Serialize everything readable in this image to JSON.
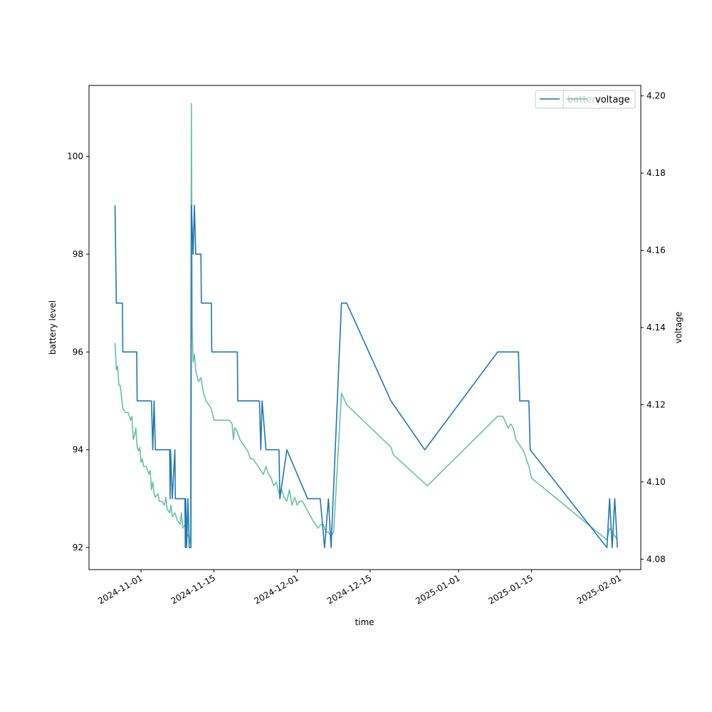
{
  "chart_data": {
    "type": "line",
    "xlabel": "time",
    "ylabel_left": "battery level",
    "ylabel_right": "voltage",
    "x_ticks": [
      "2024-11-01",
      "2024-11-15",
      "2024-12-01",
      "2024-12-15",
      "2025-01-01",
      "2025-01-15",
      "2025-02-01"
    ],
    "xlim": [
      "2024-10-22",
      "2025-02-05"
    ],
    "y_left_ticks": [
      92,
      94,
      96,
      98,
      100
    ],
    "y_left_lim": [
      91.55,
      101.45
    ],
    "y_right_ticks": [
      4.08,
      4.1,
      4.12,
      4.14,
      4.16,
      4.18,
      4.2
    ],
    "y_right_lim": [
      4.0773,
      4.2027
    ],
    "grid": false,
    "legends": [
      {
        "placement": "top-right",
        "entries": [
          "battery"
        ],
        "color": "#1f77b4"
      },
      {
        "placement": "top-right",
        "entries": [
          "voltage"
        ],
        "color": "#66c2a5"
      }
    ],
    "series": [
      {
        "name": "battery",
        "axis": "left",
        "color": "#1f77b4",
        "points": [
          [
            "2024-10-27T00:00",
            99
          ],
          [
            "2024-10-27T06:00",
            97
          ],
          [
            "2024-10-28T10:00",
            97
          ],
          [
            "2024-10-28T12:00",
            96
          ],
          [
            "2024-10-31T04:00",
            96
          ],
          [
            "2024-10-31T06:00",
            95
          ],
          [
            "2024-11-03T00:00",
            95
          ],
          [
            "2024-11-03T06:00",
            94
          ],
          [
            "2024-11-03T12:00",
            95
          ],
          [
            "2024-11-03T18:00",
            94
          ],
          [
            "2024-11-06T12:00",
            94
          ],
          [
            "2024-11-06T14:00",
            93
          ],
          [
            "2024-11-06T16:00",
            94
          ],
          [
            "2024-11-07T00:00",
            93
          ],
          [
            "2024-11-07T12:00",
            94
          ],
          [
            "2024-11-07T14:00",
            93
          ],
          [
            "2024-11-09T10:00",
            93
          ],
          [
            "2024-11-09T12:00",
            92
          ],
          [
            "2024-11-09T14:00",
            93
          ],
          [
            "2024-11-09T18:00",
            92
          ],
          [
            "2024-11-10T00:00",
            93
          ],
          [
            "2024-11-10T06:00",
            92
          ],
          [
            "2024-11-10T14:00",
            92
          ],
          [
            "2024-11-10T16:00",
            99
          ],
          [
            "2024-11-11T00:00",
            98
          ],
          [
            "2024-11-11T06:00",
            99
          ],
          [
            "2024-11-11T12:00",
            98
          ],
          [
            "2024-11-12T12:00",
            98
          ],
          [
            "2024-11-12T14:00",
            97
          ],
          [
            "2024-11-14T12:00",
            97
          ],
          [
            "2024-11-14T14:00",
            96
          ],
          [
            "2024-11-19T12:00",
            96
          ],
          [
            "2024-11-19T14:00",
            95
          ],
          [
            "2024-11-23T18:00",
            95
          ],
          [
            "2024-11-24T00:00",
            94
          ],
          [
            "2024-11-24T06:00",
            95
          ],
          [
            "2024-11-25T00:00",
            94
          ],
          [
            "2024-11-27T12:00",
            94
          ],
          [
            "2024-11-27T16:00",
            93
          ],
          [
            "2024-11-29T00:00",
            94
          ],
          [
            "2024-12-03T00:00",
            93
          ],
          [
            "2024-12-05T10:00",
            93
          ],
          [
            "2024-12-06T06:00",
            92
          ],
          [
            "2024-12-07T00:00",
            93
          ],
          [
            "2024-12-07T12:00",
            92
          ],
          [
            "2024-12-09T12:00",
            97
          ],
          [
            "2024-12-10T12:00",
            97
          ],
          [
            "2024-12-19T00:00",
            95
          ],
          [
            "2024-12-25T12:00",
            94
          ],
          [
            "2025-01-08T12:00",
            96
          ],
          [
            "2025-01-12T12:00",
            96
          ],
          [
            "2025-01-12T18:00",
            95
          ],
          [
            "2025-01-14T12:00",
            95
          ],
          [
            "2025-01-14T18:00",
            94
          ],
          [
            "2025-01-29T12:00",
            92
          ],
          [
            "2025-01-30T00:00",
            93
          ],
          [
            "2025-01-30T12:00",
            92
          ],
          [
            "2025-01-31T00:00",
            93
          ],
          [
            "2025-01-31T12:00",
            92
          ]
        ]
      },
      {
        "name": "voltage",
        "axis": "right",
        "color": "#66c2a5",
        "points": [
          [
            "2024-10-27T00:00",
            4.136
          ],
          [
            "2024-10-27T06:00",
            4.129
          ],
          [
            "2024-10-27T12:00",
            4.13
          ],
          [
            "2024-10-27T18:00",
            4.125
          ],
          [
            "2024-10-28T00:00",
            4.125
          ],
          [
            "2024-10-28T12:00",
            4.119
          ],
          [
            "2024-10-29T00:00",
            4.118
          ],
          [
            "2024-10-29T12:00",
            4.118
          ],
          [
            "2024-10-29T18:00",
            4.117
          ],
          [
            "2024-10-30T00:00",
            4.116
          ],
          [
            "2024-10-30T06:00",
            4.117
          ],
          [
            "2024-10-30T12:00",
            4.111
          ],
          [
            "2024-10-30T18:00",
            4.112
          ],
          [
            "2024-10-31T00:00",
            4.114
          ],
          [
            "2024-10-31T06:00",
            4.109
          ],
          [
            "2024-10-31T12:00",
            4.108
          ],
          [
            "2024-10-31T18:00",
            4.109
          ],
          [
            "2024-11-01T00:00",
            4.105
          ],
          [
            "2024-11-01T06:00",
            4.106
          ],
          [
            "2024-11-01T12:00",
            4.104
          ],
          [
            "2024-11-02T00:00",
            4.104
          ],
          [
            "2024-11-02T12:00",
            4.102
          ],
          [
            "2024-11-02T18:00",
            4.103
          ],
          [
            "2024-11-03T00:00",
            4.098
          ],
          [
            "2024-11-03T06:00",
            4.1
          ],
          [
            "2024-11-03T12:00",
            4.097
          ],
          [
            "2024-11-03T18:00",
            4.096
          ],
          [
            "2024-11-04T06:00",
            4.097
          ],
          [
            "2024-11-04T12:00",
            4.095
          ],
          [
            "2024-11-05T00:00",
            4.095
          ],
          [
            "2024-11-05T12:00",
            4.094
          ],
          [
            "2024-11-05T18:00",
            4.096
          ],
          [
            "2024-11-06T00:00",
            4.093
          ],
          [
            "2024-11-06T12:00",
            4.092
          ],
          [
            "2024-11-06T18:00",
            4.094
          ],
          [
            "2024-11-07T00:00",
            4.091
          ],
          [
            "2024-11-07T12:00",
            4.092
          ],
          [
            "2024-11-08T00:00",
            4.09
          ],
          [
            "2024-11-08T12:00",
            4.089
          ],
          [
            "2024-11-08T18:00",
            4.092
          ],
          [
            "2024-11-09T00:00",
            4.088
          ],
          [
            "2024-11-09T12:00",
            4.089
          ],
          [
            "2024-11-09T18:00",
            4.087
          ],
          [
            "2024-11-10T00:00",
            4.086
          ],
          [
            "2024-11-10T06:00",
            4.086
          ],
          [
            "2024-11-10T12:00",
            4.084
          ],
          [
            "2024-11-10T16:00",
            4.198
          ],
          [
            "2024-11-10T20:00",
            4.14
          ],
          [
            "2024-11-11T00:00",
            4.131
          ],
          [
            "2024-11-11T06:00",
            4.133
          ],
          [
            "2024-11-11T12:00",
            4.129
          ],
          [
            "2024-11-12T00:00",
            4.126
          ],
          [
            "2024-11-12T12:00",
            4.127
          ],
          [
            "2024-11-13T00:00",
            4.123
          ],
          [
            "2024-11-13T12:00",
            4.121
          ],
          [
            "2024-11-14T00:00",
            4.12
          ],
          [
            "2024-11-14T12:00",
            4.119
          ],
          [
            "2024-11-15T00:00",
            4.116
          ],
          [
            "2024-11-15T12:00",
            4.116
          ],
          [
            "2024-11-16T00:00",
            4.116
          ],
          [
            "2024-11-17T00:00",
            4.116
          ],
          [
            "2024-11-18T00:00",
            4.116
          ],
          [
            "2024-11-18T12:00",
            4.115
          ],
          [
            "2024-11-18T18:00",
            4.111
          ],
          [
            "2024-11-19T00:00",
            4.114
          ],
          [
            "2024-11-19T12:00",
            4.113
          ],
          [
            "2024-11-20T00:00",
            4.111
          ],
          [
            "2024-11-20T12:00",
            4.11
          ],
          [
            "2024-11-21T00:00",
            4.109
          ],
          [
            "2024-11-21T12:00",
            4.108
          ],
          [
            "2024-11-22T00:00",
            4.106
          ],
          [
            "2024-11-22T12:00",
            4.106
          ],
          [
            "2024-11-23T00:00",
            4.105
          ],
          [
            "2024-11-23T12:00",
            4.104
          ],
          [
            "2024-11-24T00:00",
            4.103
          ],
          [
            "2024-11-24T12:00",
            4.102
          ],
          [
            "2024-11-25T00:00",
            4.104
          ],
          [
            "2024-11-25T12:00",
            4.102
          ],
          [
            "2024-11-26T00:00",
            4.101
          ],
          [
            "2024-11-26T12:00",
            4.099
          ],
          [
            "2024-11-27T00:00",
            4.1
          ],
          [
            "2024-11-27T12:00",
            4.097
          ],
          [
            "2024-11-28T00:00",
            4.098
          ],
          [
            "2024-11-28T12:00",
            4.096
          ],
          [
            "2024-11-29T00:00",
            4.095
          ],
          [
            "2024-11-29T12:00",
            4.098
          ],
          [
            "2024-11-30T00:00",
            4.094
          ],
          [
            "2024-11-30T12:00",
            4.096
          ],
          [
            "2024-12-01T00:00",
            4.094
          ],
          [
            "2024-12-01T12:00",
            4.095
          ],
          [
            "2024-12-02T00:00",
            4.095
          ],
          [
            "2024-12-04T00:00",
            4.09
          ],
          [
            "2024-12-05T00:00",
            4.088
          ],
          [
            "2024-12-05T12:00",
            4.089
          ],
          [
            "2024-12-06T00:00",
            4.089
          ],
          [
            "2024-12-06T12:00",
            4.087
          ],
          [
            "2024-12-07T00:00",
            4.087
          ],
          [
            "2024-12-07T12:00",
            4.086
          ],
          [
            "2024-12-08T00:00",
            4.087
          ],
          [
            "2024-12-09T12:00",
            4.123
          ],
          [
            "2024-12-10T12:00",
            4.12
          ],
          [
            "2024-12-19T00:00",
            4.109
          ],
          [
            "2024-12-19T12:00",
            4.107
          ],
          [
            "2024-12-26T00:00",
            4.099
          ],
          [
            "2025-01-08T12:00",
            4.117
          ],
          [
            "2025-01-09T12:00",
            4.117
          ],
          [
            "2025-01-10T12:00",
            4.114
          ],
          [
            "2025-01-11T00:00",
            4.115
          ],
          [
            "2025-01-11T12:00",
            4.114
          ],
          [
            "2025-01-12T00:00",
            4.111
          ],
          [
            "2025-01-12T12:00",
            4.11
          ],
          [
            "2025-01-13T12:00",
            4.108
          ],
          [
            "2025-01-14T12:00",
            4.104
          ],
          [
            "2025-01-15T00:00",
            4.101
          ],
          [
            "2025-01-29T12:00",
            4.085
          ],
          [
            "2025-01-30T00:00",
            4.088
          ],
          [
            "2025-01-30T12:00",
            4.087
          ],
          [
            "2025-01-31T12:00",
            4.085
          ]
        ]
      }
    ]
  }
}
